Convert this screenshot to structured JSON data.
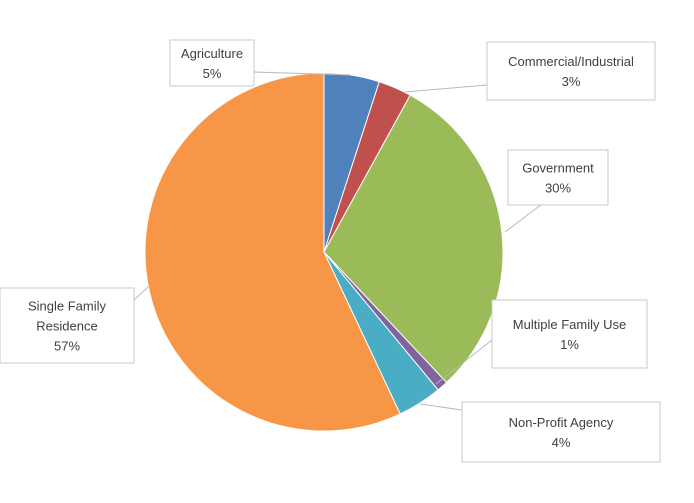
{
  "chart_data": {
    "type": "pie",
    "title": "",
    "slices": [
      {
        "name": "Agriculture",
        "label_lines": [
          "Agriculture"
        ],
        "value": 5,
        "pct_label": "5%",
        "color": "#4F81BD"
      },
      {
        "name": "Commercial/Industrial",
        "label_lines": [
          "Commercial/Industrial"
        ],
        "value": 3,
        "pct_label": "3%",
        "color": "#C0504D"
      },
      {
        "name": "Government",
        "label_lines": [
          "Government"
        ],
        "value": 30,
        "pct_label": "30%",
        "color": "#9BBB59"
      },
      {
        "name": "Multiple Family Use",
        "label_lines": [
          "Multiple Family Use"
        ],
        "value": 1,
        "pct_label": "1%",
        "color": "#8064A2"
      },
      {
        "name": "Non-Profit Agency",
        "label_lines": [
          "Non-Profit Agency"
        ],
        "value": 4,
        "pct_label": "4%",
        "color": "#4BACC6"
      },
      {
        "name": "Single Family Residence",
        "label_lines": [
          "Single Family",
          "Residence"
        ],
        "value": 57,
        "pct_label": "57%",
        "color": "#F79646"
      }
    ],
    "start_angle_deg": 0,
    "direction": "clockwise",
    "legend": "none",
    "data_labels": "callouts"
  }
}
